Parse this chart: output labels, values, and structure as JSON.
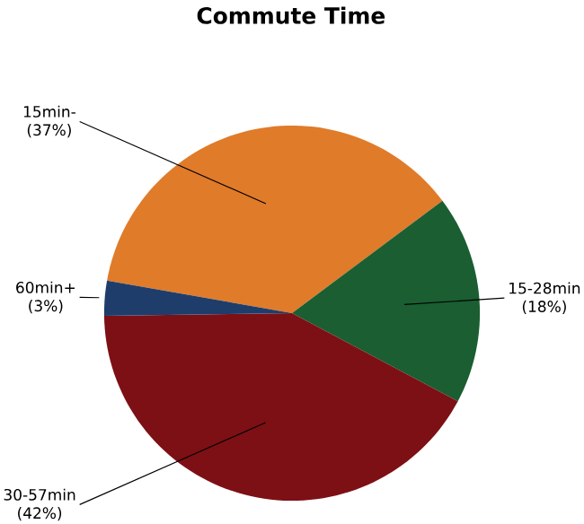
{
  "chart_data": {
    "type": "pie",
    "title": "Commute Time",
    "categories": [
      "15min-",
      "15-28min",
      "30-57min",
      "60min+"
    ],
    "values": [
      37,
      18,
      42,
      3
    ],
    "value_labels": [
      "(37%)",
      "(18%)",
      "(42%)",
      "(3%)"
    ],
    "colors": [
      "#e07b2a",
      "#1a5e32",
      "#7d1015",
      "#1f3d6b"
    ]
  }
}
